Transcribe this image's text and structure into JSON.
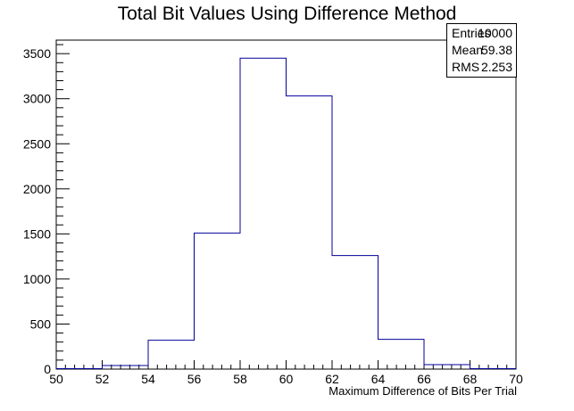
{
  "chart_data": {
    "type": "histogram",
    "title": "Total Bit Values Using Difference Method",
    "xlabel": "Maximum Difference of Bits Per Trial",
    "ylabel": "",
    "xlim": [
      50,
      70
    ],
    "ylim": [
      0,
      3650
    ],
    "bin_edges": [
      50,
      52,
      54,
      56,
      58,
      60,
      62,
      64,
      66,
      68,
      70
    ],
    "values": [
      5,
      40,
      320,
      1510,
      3450,
      3030,
      1260,
      330,
      50,
      5
    ],
    "x_ticks": [
      "50",
      "52",
      "54",
      "56",
      "58",
      "60",
      "62",
      "64",
      "66",
      "68",
      "70"
    ],
    "y_ticks": [
      "0",
      "500",
      "1000",
      "1500",
      "2000",
      "2500",
      "3000",
      "3500"
    ],
    "line_color": "#000099",
    "grid": false,
    "legend": "none"
  },
  "stats_box": {
    "rows": [
      {
        "key": "Entries",
        "value": "10000"
      },
      {
        "key": "Mean",
        "value": "59.38"
      },
      {
        "key": "RMS",
        "value": "2.253"
      }
    ]
  }
}
